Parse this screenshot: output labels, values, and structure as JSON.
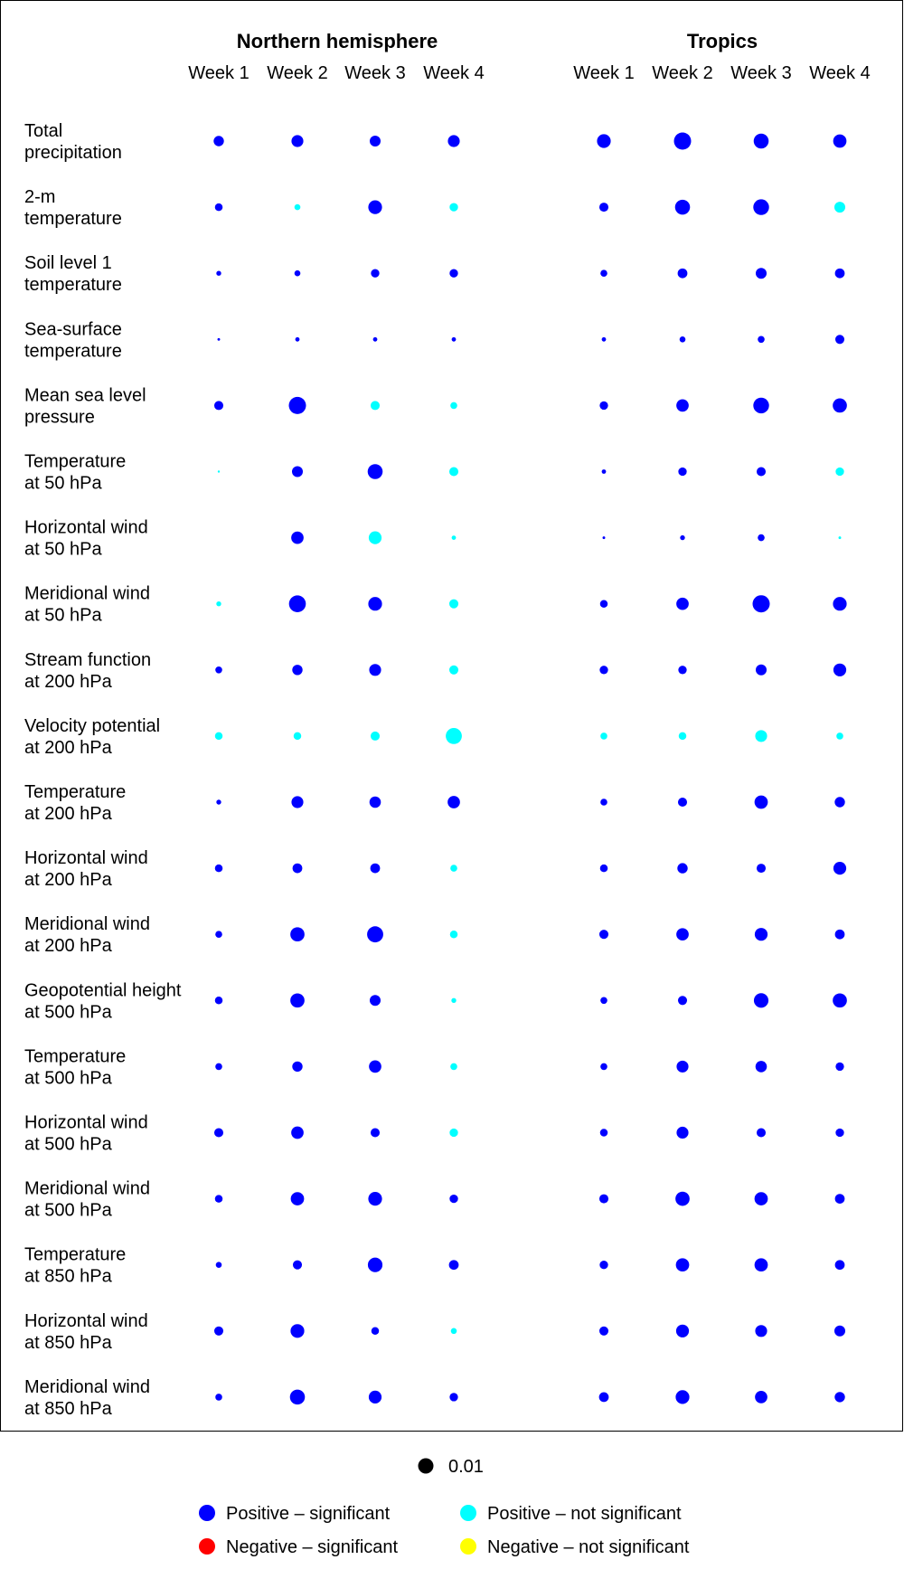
{
  "chart_data": {
    "type": "bubble-grid",
    "panels": [
      {
        "title": "Northern hemisphere",
        "weeks": [
          "Week 1",
          "Week 2",
          "Week 3",
          "Week 4"
        ]
      },
      {
        "title": "Tropics",
        "weeks": [
          "Week 1",
          "Week 2",
          "Week 3",
          "Week 4"
        ]
      }
    ],
    "variables": [
      [
        "Total",
        "precipitation"
      ],
      [
        "2-m",
        "temperature"
      ],
      [
        "Soil level 1",
        "temperature"
      ],
      [
        "Sea-surface",
        "temperature"
      ],
      [
        "Mean sea level",
        "pressure"
      ],
      [
        "Temperature",
        "at 50 hPa"
      ],
      [
        "Horizontal wind",
        "at 50 hPa"
      ],
      [
        "Meridional wind",
        "at 50 hPa"
      ],
      [
        "Stream function",
        "at 200 hPa"
      ],
      [
        "Velocity potential",
        "at 200 hPa"
      ],
      [
        "Temperature",
        "at 200 hPa"
      ],
      [
        "Horizontal wind",
        "at 200 hPa"
      ],
      [
        "Meridional wind",
        "at 200 hPa"
      ],
      [
        "Geopotential height",
        "at 500 hPa"
      ],
      [
        "Temperature",
        "at 500 hPa"
      ],
      [
        "Horizontal wind",
        "at 500 hPa"
      ],
      [
        "Meridional wind",
        "at 500 hPa"
      ],
      [
        "Temperature",
        "at 850 hPa"
      ],
      [
        "Horizontal wind",
        "at 850 hPa"
      ],
      [
        "Meridional wind",
        "at 850 hPa"
      ]
    ],
    "values": [
      [
        [
          0.0045,
          0.006,
          0.005,
          0.006
        ],
        [
          0.008,
          0.0125,
          0.0095,
          0.0075
        ]
      ],
      [
        [
          0.0025,
          0.0015,
          0.008,
          0.003
        ],
        [
          0.0035,
          0.0095,
          0.0105,
          0.005
        ]
      ],
      [
        [
          0.001,
          0.0015,
          0.003,
          0.003
        ],
        [
          0.002,
          0.004,
          0.005,
          0.004
        ]
      ],
      [
        [
          0.0003,
          0.0008,
          0.0008,
          0.0008
        ],
        [
          0.0008,
          0.0015,
          0.002,
          0.0035
        ]
      ],
      [
        [
          0.0035,
          0.0125,
          0.0035,
          0.002
        ],
        [
          0.003,
          0.0065,
          0.0105,
          0.0085
        ]
      ],
      [
        [
          0.0002,
          0.005,
          0.0095,
          0.0035
        ],
        [
          0.0008,
          0.003,
          0.0035,
          0.003
        ]
      ],
      [
        [
          0.0,
          0.0065,
          0.007,
          0.0008
        ],
        [
          0.0003,
          0.001,
          0.002,
          0.0003
        ]
      ],
      [
        [
          0.001,
          0.012,
          0.008,
          0.0035
        ],
        [
          0.0025,
          0.0065,
          0.0125,
          0.008
        ]
      ],
      [
        [
          0.002,
          0.0045,
          0.006,
          0.0035
        ],
        [
          0.003,
          0.003,
          0.005,
          0.007
        ]
      ],
      [
        [
          0.0025,
          0.0025,
          0.0035,
          0.011
        ],
        [
          0.002,
          0.0025,
          0.006,
          0.002
        ]
      ],
      [
        [
          0.001,
          0.006,
          0.0055,
          0.0065
        ],
        [
          0.002,
          0.0035,
          0.0075,
          0.0045
        ]
      ],
      [
        [
          0.0025,
          0.004,
          0.004,
          0.002
        ],
        [
          0.0025,
          0.0045,
          0.0035,
          0.007
        ]
      ],
      [
        [
          0.002,
          0.0085,
          0.011,
          0.0025
        ],
        [
          0.0035,
          0.0065,
          0.007,
          0.004
        ]
      ],
      [
        [
          0.0025,
          0.0085,
          0.005,
          0.001
        ],
        [
          0.002,
          0.0035,
          0.009,
          0.0085
        ]
      ],
      [
        [
          0.002,
          0.0045,
          0.0065,
          0.002
        ],
        [
          0.002,
          0.006,
          0.0055,
          0.003
        ]
      ],
      [
        [
          0.0035,
          0.0065,
          0.0035,
          0.003
        ],
        [
          0.0025,
          0.006,
          0.0035,
          0.003
        ]
      ],
      [
        [
          0.0025,
          0.0075,
          0.008,
          0.003
        ],
        [
          0.0035,
          0.0085,
          0.0075,
          0.004
        ]
      ],
      [
        [
          0.0015,
          0.0035,
          0.009,
          0.004
        ],
        [
          0.003,
          0.0075,
          0.0075,
          0.004
        ]
      ],
      [
        [
          0.0035,
          0.008,
          0.0025,
          0.0015
        ],
        [
          0.0035,
          0.007,
          0.006,
          0.005
        ]
      ],
      [
        [
          0.002,
          0.0095,
          0.007,
          0.003
        ],
        [
          0.004,
          0.008,
          0.0065,
          0.0045
        ]
      ]
    ],
    "significance": [
      [
        [
          "s",
          "s",
          "s",
          "s"
        ],
        [
          "s",
          "s",
          "s",
          "s"
        ]
      ],
      [
        [
          "s",
          "n",
          "s",
          "n"
        ],
        [
          "s",
          "s",
          "s",
          "n"
        ]
      ],
      [
        [
          "s",
          "s",
          "s",
          "s"
        ],
        [
          "s",
          "s",
          "s",
          "s"
        ]
      ],
      [
        [
          "s",
          "s",
          "s",
          "s"
        ],
        [
          "s",
          "s",
          "s",
          "s"
        ]
      ],
      [
        [
          "s",
          "s",
          "n",
          "n"
        ],
        [
          "s",
          "s",
          "s",
          "s"
        ]
      ],
      [
        [
          "n",
          "s",
          "s",
          "n"
        ],
        [
          "s",
          "s",
          "s",
          "n"
        ]
      ],
      [
        [
          "n",
          "s",
          "n",
          "n"
        ],
        [
          "s",
          "s",
          "s",
          "n"
        ]
      ],
      [
        [
          "n",
          "s",
          "s",
          "n"
        ],
        [
          "s",
          "s",
          "s",
          "s"
        ]
      ],
      [
        [
          "s",
          "s",
          "s",
          "n"
        ],
        [
          "s",
          "s",
          "s",
          "s"
        ]
      ],
      [
        [
          "n",
          "n",
          "n",
          "n"
        ],
        [
          "n",
          "n",
          "n",
          "n"
        ]
      ],
      [
        [
          "s",
          "s",
          "s",
          "s"
        ],
        [
          "s",
          "s",
          "s",
          "s"
        ]
      ],
      [
        [
          "s",
          "s",
          "s",
          "n"
        ],
        [
          "s",
          "s",
          "s",
          "s"
        ]
      ],
      [
        [
          "s",
          "s",
          "s",
          "n"
        ],
        [
          "s",
          "s",
          "s",
          "s"
        ]
      ],
      [
        [
          "s",
          "s",
          "s",
          "n"
        ],
        [
          "s",
          "s",
          "s",
          "s"
        ]
      ],
      [
        [
          "s",
          "s",
          "s",
          "n"
        ],
        [
          "s",
          "s",
          "s",
          "s"
        ]
      ],
      [
        [
          "s",
          "s",
          "s",
          "n"
        ],
        [
          "s",
          "s",
          "s",
          "s"
        ]
      ],
      [
        [
          "s",
          "s",
          "s",
          "s"
        ],
        [
          "s",
          "s",
          "s",
          "s"
        ]
      ],
      [
        [
          "s",
          "s",
          "s",
          "s"
        ],
        [
          "s",
          "s",
          "s",
          "s"
        ]
      ],
      [
        [
          "s",
          "s",
          "s",
          "n"
        ],
        [
          "s",
          "s",
          "s",
          "s"
        ]
      ],
      [
        [
          "s",
          "s",
          "s",
          "s"
        ],
        [
          "s",
          "s",
          "s",
          "s"
        ]
      ]
    ],
    "size_reference": {
      "value": 0.01,
      "label": "0.01",
      "color": "#000000"
    },
    "legend": [
      {
        "label": "Positive – significant",
        "color": "#0000ff"
      },
      {
        "label": "Positive – not significant",
        "color": "#00ffff"
      },
      {
        "label": "Negative – significant",
        "color": "#ff0000"
      },
      {
        "label": "Negative – not significant",
        "color": "#ffff00"
      }
    ]
  }
}
